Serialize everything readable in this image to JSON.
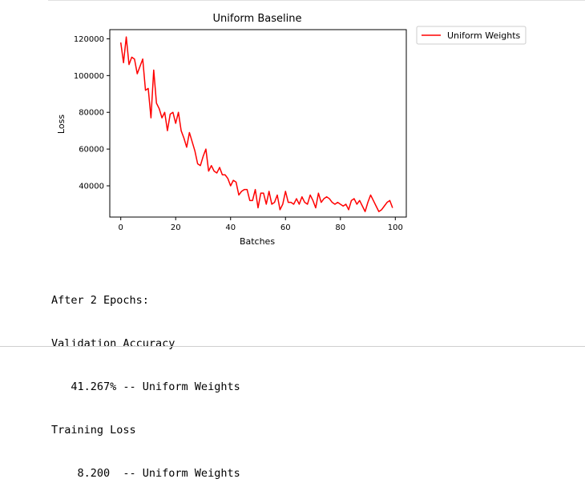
{
  "chart_data": {
    "type": "line",
    "title": "Uniform Baseline",
    "xlabel": "Batches",
    "ylabel": "Loss",
    "xlim": [
      -4,
      104
    ],
    "ylim": [
      23000,
      125000
    ],
    "xticks": [
      0,
      20,
      40,
      60,
      80,
      100
    ],
    "xtick_labels": [
      "0",
      "20",
      "40",
      "60",
      "80",
      "100"
    ],
    "yticks": [
      40000,
      60000,
      80000,
      100000,
      120000
    ],
    "ytick_labels": [
      "40000",
      "60000",
      "80000",
      "100000",
      "120000"
    ],
    "grid": false,
    "legend_position": "outside-upper-right",
    "series": [
      {
        "name": "Uniform Weights",
        "color": "#ff0000",
        "x": [
          0,
          1,
          2,
          3,
          4,
          5,
          6,
          7,
          8,
          9,
          10,
          11,
          12,
          13,
          14,
          15,
          16,
          17,
          18,
          19,
          20,
          21,
          22,
          23,
          24,
          25,
          26,
          27,
          28,
          29,
          30,
          31,
          32,
          33,
          34,
          35,
          36,
          37,
          38,
          39,
          40,
          41,
          42,
          43,
          44,
          45,
          46,
          47,
          48,
          49,
          50,
          51,
          52,
          53,
          54,
          55,
          56,
          57,
          58,
          59,
          60,
          61,
          62,
          63,
          64,
          65,
          66,
          67,
          68,
          69,
          70,
          71,
          72,
          73,
          74,
          75,
          76,
          77,
          78,
          79,
          80,
          81,
          82,
          83,
          84,
          85,
          86,
          87,
          88,
          89,
          90,
          91,
          92,
          93,
          94,
          95,
          96,
          97,
          98,
          99
        ],
        "y": [
          118000,
          107000,
          121000,
          106000,
          110000,
          109000,
          101000,
          105000,
          109000,
          92000,
          93000,
          77000,
          103000,
          85000,
          82000,
          77000,
          80000,
          70000,
          79000,
          80000,
          74000,
          80000,
          70000,
          66000,
          61000,
          69000,
          64000,
          59000,
          52000,
          51000,
          56000,
          60000,
          48000,
          51000,
          48000,
          47000,
          50000,
          46000,
          46000,
          44000,
          40000,
          43000,
          42000,
          35000,
          37000,
          38000,
          38000,
          32000,
          32000,
          38000,
          28000,
          36000,
          36000,
          30000,
          37000,
          30000,
          31000,
          35000,
          27000,
          30000,
          37000,
          31000,
          31000,
          30000,
          33000,
          30000,
          34000,
          31000,
          30000,
          35000,
          32000,
          28000,
          36000,
          31000,
          33000,
          34000,
          33000,
          31000,
          30000,
          31000,
          30000,
          29000,
          30000,
          27000,
          32000,
          33000,
          30000,
          32000,
          29000,
          26000,
          31000,
          35000,
          32000,
          29000,
          26000,
          27000,
          29000,
          31000,
          32000,
          28000
        ]
      }
    ]
  },
  "legend": {
    "label": "Uniform Weights"
  },
  "console_output": {
    "line1": "After 2 Epochs:",
    "line2": "Validation Accuracy",
    "line3": "   41.267% -- Uniform Weights",
    "line4": "Training Loss",
    "line5": "    8.200  -- Uniform Weights"
  }
}
